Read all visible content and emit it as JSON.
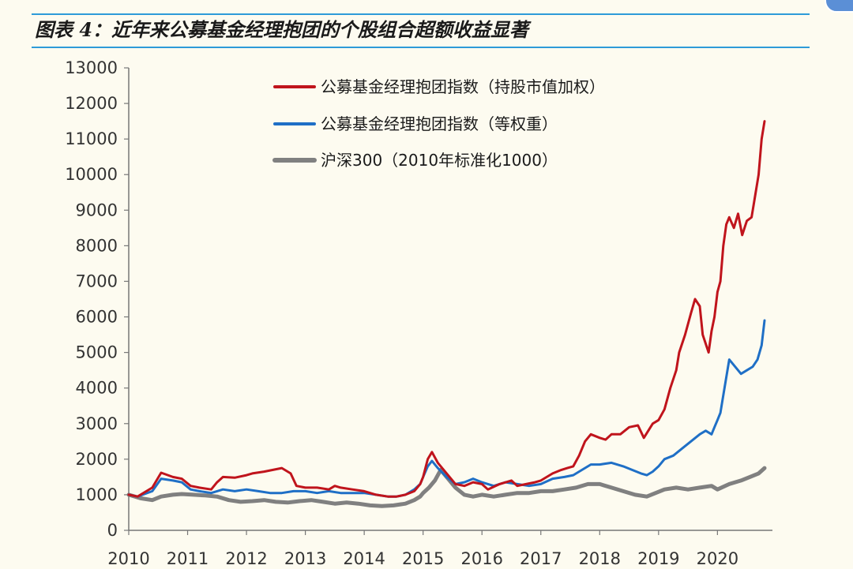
{
  "title": "图表 4：近年来公募基金经理抱团的个股组合超额收益显著",
  "chart_data": {
    "type": "line",
    "title": "图表 4：近年来公募基金经理抱团的个股组合超额收益显著",
    "xlabel": "",
    "ylabel": "",
    "xlim": [
      2010.0,
      2020.8
    ],
    "ylim": [
      0,
      13000
    ],
    "yticks": [
      "0",
      "1000",
      "2000",
      "3000",
      "4000",
      "5000",
      "6000",
      "7000",
      "8000",
      "9000",
      "10000",
      "11000",
      "12000",
      "13000"
    ],
    "xticks": [
      "2010",
      "2011",
      "2012",
      "2013",
      "2014",
      "2015",
      "2016",
      "2017",
      "2018",
      "2019",
      "2020"
    ],
    "grid": false,
    "legend": "top-center",
    "series": [
      {
        "name": "公募基金经理抱团指数（持股市值加权）",
        "color": "#c0141c",
        "x": [
          2010.0,
          2010.15,
          2010.4,
          2010.55,
          2010.75,
          2010.9,
          2011.05,
          2011.2,
          2011.4,
          2011.5,
          2011.6,
          2011.8,
          2012.0,
          2012.1,
          2012.3,
          2012.45,
          2012.6,
          2012.75,
          2012.85,
          2013.0,
          2013.2,
          2013.4,
          2013.5,
          2013.6,
          2013.8,
          2014.0,
          2014.2,
          2014.4,
          2014.55,
          2014.7,
          2014.85,
          2014.95,
          2015.0,
          2015.08,
          2015.15,
          2015.25,
          2015.4,
          2015.55,
          2015.7,
          2015.85,
          2016.0,
          2016.1,
          2016.3,
          2016.5,
          2016.6,
          2016.75,
          2016.9,
          2017.0,
          2017.2,
          2017.35,
          2017.45,
          2017.55,
          2017.65,
          2017.75,
          2017.85,
          2018.0,
          2018.1,
          2018.2,
          2018.35,
          2018.5,
          2018.65,
          2018.75,
          2018.9,
          2019.0,
          2019.1,
          2019.2,
          2019.3,
          2019.35,
          2019.45,
          2019.55,
          2019.62,
          2019.7,
          2019.75,
          2019.85,
          2019.9,
          2019.95,
          2020.0,
          2020.05,
          2020.1,
          2020.15,
          2020.2,
          2020.28,
          2020.35,
          2020.42,
          2020.5,
          2020.58,
          2020.65,
          2020.7,
          2020.75,
          2020.8
        ],
        "values": [
          1000,
          950,
          1200,
          1620,
          1500,
          1450,
          1250,
          1200,
          1150,
          1350,
          1500,
          1480,
          1550,
          1600,
          1650,
          1700,
          1750,
          1600,
          1250,
          1200,
          1200,
          1150,
          1250,
          1200,
          1150,
          1100,
          1000,
          950,
          950,
          1000,
          1100,
          1300,
          1500,
          2000,
          2200,
          1900,
          1600,
          1300,
          1250,
          1350,
          1300,
          1150,
          1300,
          1400,
          1250,
          1300,
          1350,
          1400,
          1600,
          1700,
          1750,
          1800,
          2100,
          2500,
          2700,
          2600,
          2550,
          2700,
          2700,
          2900,
          2950,
          2600,
          3000,
          3100,
          3400,
          4000,
          4500,
          5000,
          5500,
          6100,
          6500,
          6300,
          5500,
          5000,
          5600,
          6000,
          6700,
          7000,
          8000,
          8600,
          8800,
          8500,
          8900,
          8300,
          8700,
          8800,
          9500,
          10000,
          11000,
          11500
        ]
      },
      {
        "name": "公募基金经理抱团指数（等权重）",
        "color": "#1f6fc6",
        "x": [
          2010.0,
          2010.15,
          2010.4,
          2010.55,
          2010.75,
          2010.9,
          2011.05,
          2011.2,
          2011.4,
          2011.6,
          2011.8,
          2012.0,
          2012.2,
          2012.4,
          2012.6,
          2012.8,
          2013.0,
          2013.2,
          2013.4,
          2013.6,
          2013.8,
          2014.0,
          2014.2,
          2014.4,
          2014.55,
          2014.7,
          2014.85,
          2014.95,
          2015.0,
          2015.08,
          2015.15,
          2015.25,
          2015.4,
          2015.55,
          2015.7,
          2015.85,
          2016.0,
          2016.2,
          2016.4,
          2016.6,
          2016.8,
          2017.0,
          2017.2,
          2017.4,
          2017.55,
          2017.7,
          2017.85,
          2018.0,
          2018.2,
          2018.4,
          2018.55,
          2018.7,
          2018.8,
          2018.9,
          2019.0,
          2019.1,
          2019.25,
          2019.4,
          2019.55,
          2019.7,
          2019.8,
          2019.9,
          2019.95,
          2020.0,
          2020.05,
          2020.12,
          2020.2,
          2020.3,
          2020.4,
          2020.5,
          2020.6,
          2020.68,
          2020.75,
          2020.8
        ],
        "values": [
          1000,
          950,
          1100,
          1450,
          1400,
          1350,
          1150,
          1100,
          1050,
          1150,
          1100,
          1150,
          1100,
          1050,
          1050,
          1100,
          1100,
          1050,
          1100,
          1050,
          1050,
          1050,
          1000,
          950,
          950,
          1000,
          1150,
          1300,
          1500,
          1800,
          1950,
          1750,
          1500,
          1300,
          1350,
          1450,
          1350,
          1250,
          1350,
          1300,
          1250,
          1300,
          1450,
          1500,
          1550,
          1700,
          1850,
          1850,
          1900,
          1800,
          1700,
          1600,
          1550,
          1650,
          1800,
          2000,
          2100,
          2300,
          2500,
          2700,
          2800,
          2700,
          2900,
          3100,
          3300,
          4000,
          4800,
          4600,
          4400,
          4500,
          4600,
          4800,
          5200,
          5900
        ]
      },
      {
        "name": "沪深300（2010年标准化1000）",
        "color": "#808080",
        "x": [
          2010.0,
          2010.2,
          2010.4,
          2010.55,
          2010.75,
          2010.9,
          2011.1,
          2011.3,
          2011.5,
          2011.7,
          2011.9,
          2012.1,
          2012.3,
          2012.5,
          2012.7,
          2012.9,
          2013.1,
          2013.3,
          2013.5,
          2013.7,
          2013.9,
          2014.1,
          2014.3,
          2014.5,
          2014.7,
          2014.85,
          2014.95,
          2015.0,
          2015.1,
          2015.2,
          2015.3,
          2015.4,
          2015.55,
          2015.7,
          2015.85,
          2016.0,
          2016.2,
          2016.4,
          2016.6,
          2016.8,
          2017.0,
          2017.2,
          2017.4,
          2017.6,
          2017.8,
          2018.0,
          2018.2,
          2018.4,
          2018.6,
          2018.8,
          2018.95,
          2019.1,
          2019.3,
          2019.5,
          2019.7,
          2019.9,
          2020.0,
          2020.2,
          2020.4,
          2020.55,
          2020.7,
          2020.8
        ],
        "values": [
          1000,
          900,
          850,
          950,
          1000,
          1020,
          1000,
          980,
          950,
          850,
          800,
          820,
          850,
          800,
          780,
          820,
          850,
          800,
          750,
          780,
          750,
          700,
          680,
          700,
          750,
          850,
          950,
          1050,
          1200,
          1400,
          1700,
          1500,
          1200,
          1000,
          950,
          1000,
          950,
          1000,
          1050,
          1050,
          1100,
          1100,
          1150,
          1200,
          1300,
          1300,
          1200,
          1100,
          1000,
          950,
          1050,
          1150,
          1200,
          1150,
          1200,
          1250,
          1150,
          1300,
          1400,
          1500,
          1600,
          1750
        ]
      }
    ]
  }
}
